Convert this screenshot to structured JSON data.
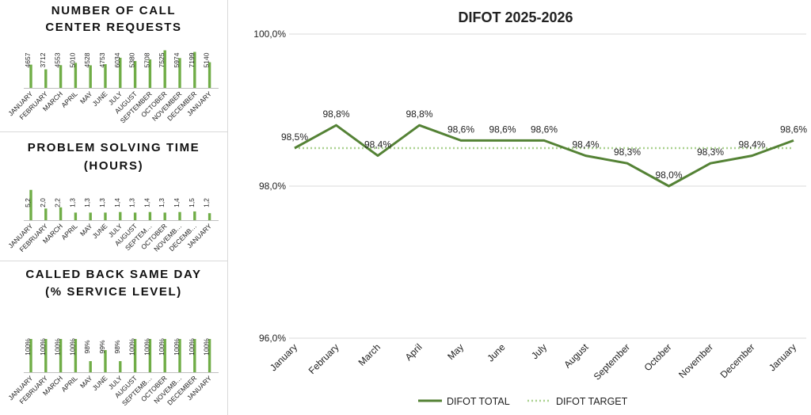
{
  "panels": [
    {
      "title_line1": "NUMBER OF CALL",
      "title_line2": "CENTER REQUESTS",
      "chart_data": {
        "type": "bar",
        "categories": [
          "JANUARY",
          "FEBRUARY",
          "MARCH",
          "APRIL",
          "MAY",
          "JUNE",
          "JULY",
          "AUGUST",
          "SEPTEMBER",
          "OCTOBER",
          "NOVEMBER",
          "DECEMBER",
          "JANUARY"
        ],
        "values": [
          4657,
          3712,
          4553,
          5010,
          4528,
          4753,
          6034,
          5380,
          5708,
          7525,
          5974,
          7199,
          5140
        ],
        "labels": [
          "4657",
          "3712",
          "4553",
          "5010",
          "4528",
          "4753",
          "6034",
          "5380",
          "5708",
          "7525",
          "5974",
          "7199",
          "5140"
        ],
        "ylim": [
          0,
          8400
        ]
      }
    },
    {
      "title_line1": "PROBLEM SOLVING TIME",
      "title_line2": "(HOURS)",
      "chart_data": {
        "type": "bar",
        "categories": [
          "JANUARY",
          "FEBRUARY",
          "MARCH",
          "APRIL",
          "MAY",
          "JUNE",
          "JULY",
          "AUGUST",
          "SEPTEM…",
          "OCTOBER",
          "NOVEMB…",
          "DECEMB…",
          "JANUARY"
        ],
        "values": [
          5.2,
          2.0,
          2.2,
          1.3,
          1.3,
          1.3,
          1.4,
          1.3,
          1.4,
          1.3,
          1.4,
          1.5,
          1.2
        ],
        "labels": [
          "5,2",
          "2,0",
          "2,2",
          "1,3",
          "1,3",
          "1,3",
          "1,4",
          "1,3",
          "1,4",
          "1,3",
          "1,4",
          "1,5",
          "1,2"
        ],
        "ylim": [
          0,
          5.3
        ]
      }
    },
    {
      "title_line1": "CALLED BACK SAME DAY",
      "title_line2": "(% SERVICE LEVEL)",
      "chart_data": {
        "type": "bar",
        "categories": [
          "JANUARY",
          "FEBRUARY",
          "MARCH",
          "APRIL",
          "MAY",
          "JUNE",
          "JULY",
          "AUGUST",
          "SEPTEMB…",
          "OCTOBER",
          "NOVEMB…",
          "DECEMBER",
          "JANUARY"
        ],
        "values": [
          100,
          100,
          100,
          100,
          98,
          99,
          98,
          100,
          100,
          100,
          100,
          100,
          100
        ],
        "labels": [
          "100%",
          "100%",
          "100%",
          "100%",
          "98%",
          "99%",
          "98%",
          "100%",
          "100%",
          "100%",
          "100%",
          "100%",
          "100%"
        ],
        "ylim": [
          97,
          100
        ]
      }
    }
  ],
  "chart_data": {
    "type": "line",
    "title": "DIFOT 2025-2026",
    "categories": [
      "January",
      "February",
      "March",
      "April",
      "May",
      "June",
      "July",
      "August",
      "September",
      "October",
      "November",
      "December",
      "January"
    ],
    "ylim": [
      96.0,
      100.0
    ],
    "ticks": [
      96.0,
      98.0,
      100.0
    ],
    "tick_labels": [
      "96,0%",
      "98,0%",
      "100,0%"
    ],
    "series": [
      {
        "name": "DIFOT TOTAL",
        "style": "solid",
        "values": [
          98.5,
          98.8,
          98.4,
          98.8,
          98.6,
          98.6,
          98.6,
          98.4,
          98.3,
          98.0,
          98.3,
          98.4,
          98.6
        ],
        "labels": [
          "98,5%",
          "98,8%",
          "98,4%",
          "98,8%",
          "98,6%",
          "98,6%",
          "98,6%",
          "98,4%",
          "98,3%",
          "98,0%",
          "98,3%",
          "98,4%",
          "98,6%"
        ]
      },
      {
        "name": "DIFOT TARGET",
        "style": "dotted",
        "values": [
          98.5,
          98.5,
          98.5,
          98.5,
          98.5,
          98.5,
          98.5,
          98.5,
          98.5,
          98.5,
          98.5,
          98.5,
          98.5
        ]
      }
    ],
    "legend_position": "bottom"
  },
  "colors": {
    "bar": "#70ad47",
    "line": "#548235",
    "target": "#a9d18e",
    "grid": "#d9d9d9",
    "axis": "#bfbfbf"
  }
}
